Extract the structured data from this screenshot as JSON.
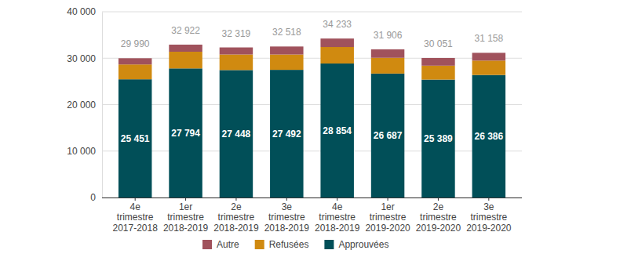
{
  "chart_data": {
    "type": "bar",
    "stacked": true,
    "data_labels": true,
    "grid": true,
    "legend": "bottom",
    "categories": [
      "4e trimestre 2017-2018",
      "1er trimestre 2018-2019",
      "2e trimestre 2018-2019",
      "3e trimestre 2018-2019",
      "4e trimestre 2018-2019",
      "1er trimestre 2019-2020",
      "2e trimestre 2019-2020",
      "3e trimestre 2019-2020"
    ],
    "series": [
      {
        "name": "Autre",
        "color": "#a0525c",
        "values": [
          1339,
          1528,
          1521,
          1726,
          1829,
          1819,
          1662,
          1672
        ]
      },
      {
        "name": "Refusées",
        "color": "#d08a10",
        "values": [
          3200,
          3600,
          3350,
          3300,
          3550,
          3400,
          3000,
          3100
        ]
      },
      {
        "name": "Approuvées",
        "color": "#014f58",
        "values": [
          25451,
          27794,
          27448,
          27492,
          28854,
          26687,
          25389,
          26386
        ],
        "value_labels": [
          "25 451",
          "27 794",
          "27 448",
          "27 492",
          "28 854",
          "26 687",
          "25 389",
          "26 386"
        ]
      }
    ],
    "totals": {
      "values": [
        29990,
        32922,
        32319,
        32518,
        34233,
        31906,
        30051,
        31158
      ],
      "value_labels": [
        "29 990",
        "32 922",
        "32 319",
        "32 518",
        "34 233",
        "31 906",
        "30 051",
        "31 158"
      ]
    },
    "ylim": [
      0,
      40000
    ],
    "yticks": [
      0,
      {
        "value": 10000,
        "label": "10 000"
      },
      {
        "value": 20000,
        "label": "20 000"
      },
      {
        "value": 30000,
        "label": "30 000"
      },
      {
        "value": 40000,
        "label": "40 000"
      }
    ]
  }
}
